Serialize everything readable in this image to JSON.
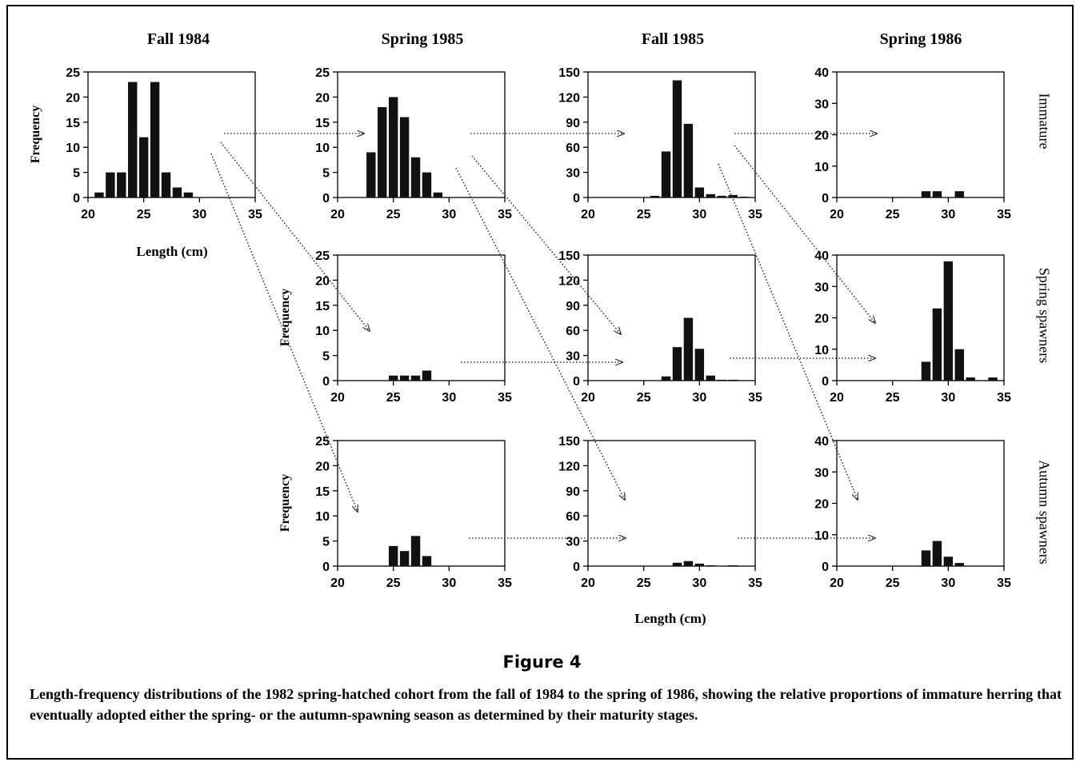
{
  "columns": [
    "Fall 1984",
    "Spring 1985",
    "Fall 1985",
    "Spring 1986"
  ],
  "rows": [
    "Immature",
    "Spring spawners",
    "Autumn spawners"
  ],
  "ylabel": "Frequency",
  "xlabel": "Length (cm)",
  "figure_title": "Figure 4",
  "caption": "Length-frequency distributions of the 1982 spring-hatched cohort from the fall of 1984 to the spring of 1986, showing the relative proportions of immature herring that eventually adopted either the spring- or the autumn-spawning season as determined by their maturity stages.",
  "colors": {
    "bar": "#111111",
    "axis": "#000000",
    "arrow": "#333333"
  },
  "chart_data": [
    {
      "id": "fall1984-immature",
      "type": "bar",
      "column": "Fall 1984",
      "row": "Immature",
      "x": [
        21,
        22,
        23,
        24,
        25,
        26,
        27,
        28,
        29
      ],
      "values": [
        1,
        5,
        5,
        23,
        12,
        23,
        5,
        2,
        1
      ],
      "xlim": [
        20,
        35
      ],
      "ylim": [
        0,
        25
      ],
      "yticks": [
        "0",
        "5",
        "10",
        "15",
        "20",
        "25"
      ],
      "xticks": [
        "20",
        "25",
        "30",
        "35"
      ]
    },
    {
      "id": "spring1985-immature",
      "type": "bar",
      "column": "Spring 1985",
      "row": "Immature",
      "x": [
        23,
        24,
        25,
        26,
        27,
        28,
        29
      ],
      "values": [
        9,
        18,
        20,
        16,
        8,
        5,
        1
      ],
      "xlim": [
        20,
        35
      ],
      "ylim": [
        0,
        25
      ],
      "yticks": [
        "0",
        "5",
        "10",
        "15",
        "20",
        "25"
      ],
      "xticks": [
        "20",
        "25",
        "30",
        "35"
      ]
    },
    {
      "id": "fall1985-immature",
      "type": "bar",
      "column": "Fall 1985",
      "row": "Immature",
      "x": [
        26,
        27,
        28,
        29,
        30,
        31,
        32,
        33,
        34
      ],
      "values": [
        2,
        55,
        140,
        88,
        12,
        4,
        2,
        3,
        1
      ],
      "xlim": [
        20,
        35
      ],
      "ylim": [
        0,
        150
      ],
      "yticks": [
        "0",
        "30",
        "60",
        "90",
        "120",
        "150"
      ],
      "xticks": [
        "20",
        "25",
        "30",
        "35"
      ]
    },
    {
      "id": "spring1986-immature",
      "type": "bar",
      "column": "Spring 1986",
      "row": "Immature",
      "x": [
        28,
        29,
        31
      ],
      "values": [
        2,
        2,
        2
      ],
      "xlim": [
        20,
        35
      ],
      "ylim": [
        0,
        40
      ],
      "yticks": [
        "0",
        "10",
        "20",
        "30",
        "40"
      ],
      "xticks": [
        "20",
        "25",
        "30",
        "35"
      ]
    },
    {
      "id": "spring1985-spring",
      "type": "bar",
      "column": "Spring 1985",
      "row": "Spring spawners",
      "x": [
        25,
        26,
        27,
        28
      ],
      "values": [
        1,
        1,
        1,
        2
      ],
      "xlim": [
        20,
        35
      ],
      "ylim": [
        0,
        25
      ],
      "yticks": [
        "0",
        "5",
        "10",
        "15",
        "20",
        "25"
      ],
      "xticks": [
        "20",
        "25",
        "30",
        "35"
      ]
    },
    {
      "id": "fall1985-spring",
      "type": "bar",
      "column": "Fall 1985",
      "row": "Spring spawners",
      "x": [
        27,
        28,
        29,
        30,
        31,
        32,
        33
      ],
      "values": [
        5,
        40,
        75,
        38,
        6,
        1,
        1
      ],
      "xlim": [
        20,
        35
      ],
      "ylim": [
        0,
        150
      ],
      "yticks": [
        "0",
        "30",
        "60",
        "90",
        "120",
        "150"
      ],
      "xticks": [
        "20",
        "25",
        "30",
        "35"
      ]
    },
    {
      "id": "spring1986-spring",
      "type": "bar",
      "column": "Spring 1986",
      "row": "Spring spawners",
      "x": [
        28,
        29,
        30,
        31,
        32,
        34
      ],
      "values": [
        6,
        23,
        38,
        10,
        1,
        1
      ],
      "xlim": [
        20,
        35
      ],
      "ylim": [
        0,
        40
      ],
      "yticks": [
        "0",
        "10",
        "20",
        "30",
        "40"
      ],
      "xticks": [
        "20",
        "25",
        "30",
        "35"
      ]
    },
    {
      "id": "spring1985-autumn",
      "type": "bar",
      "column": "Spring 1985",
      "row": "Autumn spawners",
      "x": [
        25,
        26,
        27,
        28
      ],
      "values": [
        4,
        3,
        6,
        2
      ],
      "xlim": [
        20,
        35
      ],
      "ylim": [
        0,
        25
      ],
      "yticks": [
        "0",
        "5",
        "10",
        "15",
        "20",
        "25"
      ],
      "xticks": [
        "20",
        "25",
        "30",
        "35"
      ]
    },
    {
      "id": "fall1985-autumn",
      "type": "bar",
      "column": "Fall 1985",
      "row": "Autumn spawners",
      "x": [
        28,
        29,
        30,
        31,
        33
      ],
      "values": [
        4,
        6,
        3,
        1,
        1
      ],
      "xlim": [
        20,
        35
      ],
      "ylim": [
        0,
        150
      ],
      "yticks": [
        "0",
        "30",
        "60",
        "90",
        "120",
        "150"
      ],
      "xticks": [
        "20",
        "25",
        "30",
        "35"
      ]
    },
    {
      "id": "spring1986-autumn",
      "type": "bar",
      "column": "Spring 1986",
      "row": "Autumn spawners",
      "x": [
        28,
        29,
        30,
        31
      ],
      "values": [
        5,
        8,
        3,
        1
      ],
      "xlim": [
        20,
        35
      ],
      "ylim": [
        0,
        40
      ],
      "yticks": [
        "0",
        "10",
        "20",
        "30",
        "40"
      ],
      "xticks": [
        "20",
        "25",
        "30",
        "35"
      ]
    }
  ]
}
